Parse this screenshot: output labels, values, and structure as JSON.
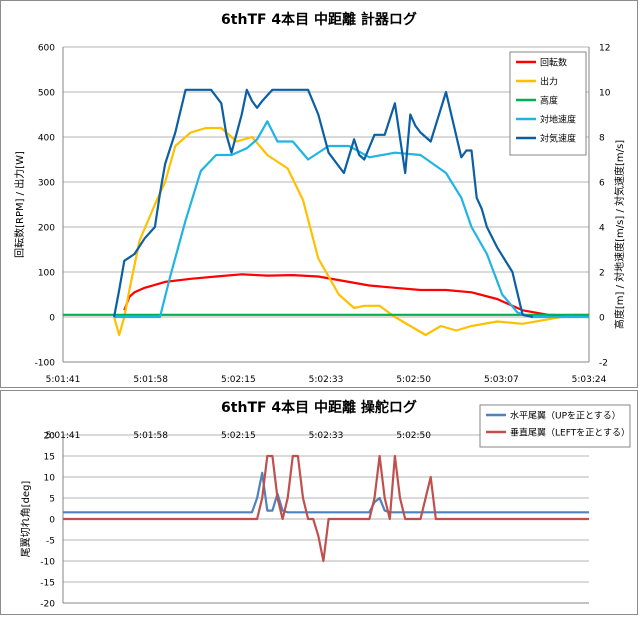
{
  "chart_data": [
    {
      "type": "line",
      "title": "6thTF 4本目 中距離 計器ログ",
      "ylabel": "回転数[RPM] / 出力[W]",
      "y2label": "高度[m] / 対地速度[m/s] / 対気速度[m/s]",
      "ylim": [
        -100,
        600
      ],
      "y2lim": [
        -2,
        12
      ],
      "yticks": [
        "-100",
        "0",
        "100",
        "200",
        "300",
        "400",
        "500",
        "600"
      ],
      "y2ticks": [
        "-2",
        "0",
        "2",
        "4",
        "6",
        "8",
        "10",
        "12"
      ],
      "xticks": [
        "5:01:41",
        "5:01:58",
        "5:02:15",
        "5:02:33",
        "5:02:50",
        "5:03:07",
        "5:03:24"
      ],
      "xlim_s": [
        0,
        103
      ],
      "grid": "horizontal",
      "legend_position": "top-right",
      "series": [
        {
          "name": "回転数",
          "color": "#ff0000",
          "axis": "left",
          "x": [
            12,
            13,
            14,
            16,
            20,
            25,
            30,
            35,
            40,
            45,
            50,
            55,
            60,
            65,
            70,
            75,
            80,
            85,
            90,
            95,
            100,
            103
          ],
          "y": [
            15,
            45,
            55,
            65,
            78,
            85,
            90,
            95,
            92,
            93,
            90,
            80,
            70,
            65,
            60,
            60,
            55,
            40,
            15,
            5,
            3,
            3
          ]
        },
        {
          "name": "出力",
          "color": "#ffc000",
          "axis": "left",
          "x": [
            10,
            11,
            12,
            13,
            15,
            18,
            20,
            22,
            25,
            28,
            31,
            34,
            37,
            40,
            44,
            47,
            50,
            52,
            54,
            57,
            59,
            62,
            65,
            68,
            71,
            74,
            77,
            80,
            85,
            90,
            95,
            100,
            103
          ],
          "y": [
            0,
            -40,
            0,
            60,
            170,
            250,
            300,
            380,
            410,
            420,
            420,
            390,
            400,
            360,
            330,
            260,
            130,
            90,
            50,
            20,
            25,
            25,
            0,
            -20,
            -40,
            -20,
            -30,
            -20,
            -10,
            -15,
            -5,
            5,
            5
          ]
        },
        {
          "name": "高度",
          "color": "#00b050",
          "axis": "left",
          "x": [
            0,
            103
          ],
          "y": [
            5,
            5
          ]
        },
        {
          "name": "対地速度",
          "color": "#1fb4e4",
          "axis": "right",
          "x": [
            10,
            12,
            14,
            16,
            19,
            21,
            24,
            27,
            30,
            33,
            36,
            38,
            40,
            42,
            45,
            48,
            52,
            56,
            60,
            65,
            70,
            75,
            78,
            80,
            83,
            86,
            89,
            92,
            95,
            98,
            100,
            103
          ],
          "y": [
            0,
            0,
            0,
            0,
            0,
            1.8,
            4.3,
            6.5,
            7.2,
            7.2,
            7.5,
            7.9,
            8.7,
            7.8,
            7.8,
            7.0,
            7.6,
            7.6,
            7.1,
            7.3,
            7.2,
            6.4,
            5.3,
            4,
            2.8,
            1,
            0.2,
            0,
            0,
            0,
            0,
            0
          ]
        },
        {
          "name": "対気速度",
          "color": "#0b5fa5",
          "axis": "right",
          "x": [
            10,
            11,
            12,
            14,
            16,
            18,
            19,
            20,
            22,
            24,
            26,
            27,
            28,
            29,
            31,
            32,
            33,
            35,
            36,
            37,
            38,
            39,
            41,
            44,
            48,
            50,
            52,
            55,
            57,
            58,
            59,
            61,
            63,
            65,
            67,
            68,
            69,
            70,
            72,
            75,
            78,
            79,
            80,
            81,
            82,
            83,
            85,
            88,
            90,
            92
          ],
          "y": [
            0,
            1.2,
            2.5,
            2.8,
            3.5,
            4,
            5.5,
            6.8,
            8.2,
            10.1,
            10.1,
            10.1,
            10.1,
            10.1,
            9.5,
            8.1,
            7.3,
            9.0,
            10.1,
            9.6,
            9.3,
            9.6,
            10.1,
            10.1,
            10.1,
            9,
            7.3,
            6.4,
            7.9,
            7.2,
            7.0,
            8.1,
            8.1,
            9.5,
            6.4,
            9,
            8.5,
            8.2,
            7.8,
            10,
            7.1,
            7.4,
            7.4,
            5.3,
            4.8,
            4,
            3.1,
            2,
            0.1,
            0
          ]
        }
      ]
    },
    {
      "type": "line",
      "title": "6thTF 4本目 中距離 操舵ログ",
      "ylabel": "尾翼切れ角[deg]",
      "ylim": [
        -20,
        20
      ],
      "yticks": [
        "-20",
        "-15",
        "-10",
        "-5",
        "0",
        "5",
        "10",
        "15",
        "20"
      ],
      "xticks": [
        "5:01:41",
        "5:01:58",
        "5:02:15",
        "5:02:33",
        "5:02:50",
        "5:03:07",
        "5:03:24"
      ],
      "xlim_s": [
        0,
        103
      ],
      "grid": "horizontal",
      "legend_position": "top-right",
      "series": [
        {
          "name": "水平尾翼（UPを正とする）",
          "color": "#4f81bd",
          "x": [
            0,
            37,
            38,
            39,
            40,
            41,
            42,
            43,
            44,
            60,
            61,
            62,
            63,
            64,
            103
          ],
          "y": [
            1.6,
            1.6,
            5,
            11,
            2,
            2,
            6,
            2,
            1.6,
            1.6,
            4,
            5,
            2,
            1.6,
            1.6
          ]
        },
        {
          "name": "垂直尾翼（LEFTを正とする）",
          "color": "#c0504d",
          "x": [
            0,
            38,
            39,
            40,
            41,
            42,
            43,
            44,
            45,
            46,
            47,
            48,
            49,
            50,
            51,
            52,
            54,
            55,
            56,
            57,
            58,
            59,
            60,
            61,
            62,
            63,
            64,
            65,
            66,
            67,
            68,
            69,
            70,
            71,
            72,
            73,
            74,
            75,
            103
          ],
          "y": [
            0,
            0,
            5,
            15,
            15,
            5,
            0,
            5,
            15,
            15,
            5,
            0,
            0,
            -4,
            -10,
            0,
            0,
            0,
            0,
            0,
            0,
            0,
            0,
            5,
            15,
            5,
            0,
            15,
            5,
            0,
            0,
            0,
            0,
            5,
            10,
            0,
            0,
            0,
            0
          ]
        }
      ]
    }
  ]
}
